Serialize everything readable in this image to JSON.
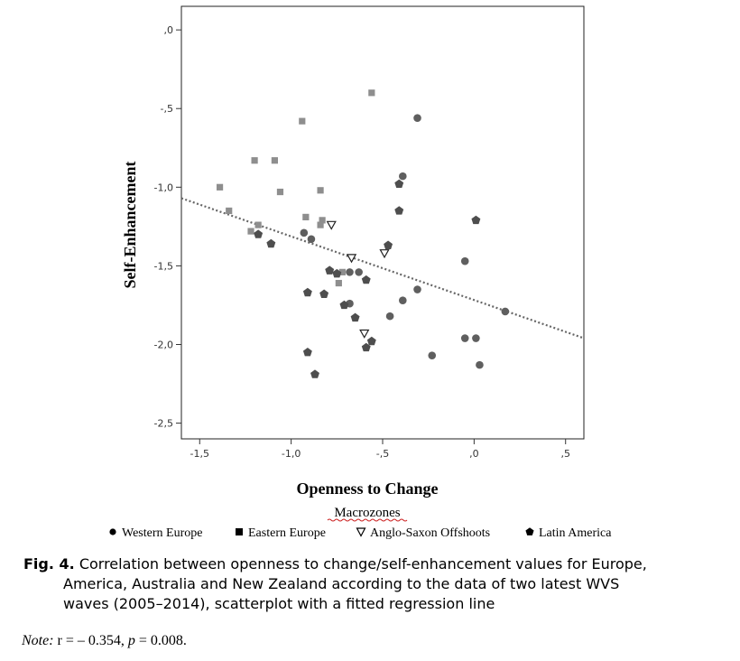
{
  "chart_data": {
    "type": "scatter",
    "xlabel": "Openness to Change",
    "ylabel": "Self-Enhancement",
    "xlim": [
      -1.6,
      0.6
    ],
    "ylim": [
      -2.6,
      0.15
    ],
    "xticks": [
      -1.5,
      -1.0,
      -0.5,
      0.0,
      0.5
    ],
    "yticks": [
      0.0,
      -0.5,
      -1.0,
      -1.5,
      -2.0,
      -2.5
    ],
    "xtick_labels": [
      "-1,5",
      "-1,0",
      "-,5",
      ",0",
      ",5"
    ],
    "ytick_labels": [
      ",0",
      "-,5",
      "-1,0",
      "-1,5",
      "-2,0",
      "-2,5"
    ],
    "legend_title": "Macrozones",
    "legend_placement": "bottom",
    "regression_line": {
      "x": [
        -1.6,
        0.6
      ],
      "y": [
        -1.07,
        -1.96
      ],
      "style": "dotted"
    },
    "series": [
      {
        "name": "Western Europe",
        "marker": "circle",
        "color": "#5f5f5f",
        "points": [
          [
            -0.31,
            -0.56
          ],
          [
            -0.39,
            -0.93
          ],
          [
            -0.93,
            -1.29
          ],
          [
            -0.89,
            -1.33
          ],
          [
            -0.68,
            -1.54
          ],
          [
            -0.63,
            -1.54
          ],
          [
            -0.39,
            -1.72
          ],
          [
            -0.31,
            -1.65
          ],
          [
            -0.46,
            -1.82
          ],
          [
            -0.68,
            -1.74
          ],
          [
            -0.05,
            -1.47
          ],
          [
            0.17,
            -1.79
          ],
          [
            -0.05,
            -1.96
          ],
          [
            0.01,
            -1.96
          ],
          [
            0.03,
            -2.13
          ],
          [
            -0.23,
            -2.07
          ]
        ]
      },
      {
        "name": "Eastern Europe",
        "marker": "square",
        "color": "#8e8e8e",
        "points": [
          [
            -0.56,
            -0.4
          ],
          [
            -0.94,
            -0.58
          ],
          [
            -1.2,
            -0.83
          ],
          [
            -1.09,
            -0.83
          ],
          [
            -1.39,
            -1.0
          ],
          [
            -1.06,
            -1.03
          ],
          [
            -0.84,
            -1.02
          ],
          [
            -1.34,
            -1.15
          ],
          [
            -0.92,
            -1.19
          ],
          [
            -0.83,
            -1.21
          ],
          [
            -1.18,
            -1.24
          ],
          [
            -0.84,
            -1.24
          ],
          [
            -1.22,
            -1.28
          ],
          [
            -0.72,
            -1.54
          ],
          [
            -0.74,
            -1.61
          ]
        ]
      },
      {
        "name": "Anglo-Saxon Offshoots",
        "marker": "triangle-down",
        "color": "#222222",
        "points": [
          [
            -0.78,
            -1.24
          ],
          [
            -0.67,
            -1.45
          ],
          [
            -0.49,
            -1.42
          ],
          [
            -0.6,
            -1.93
          ]
        ]
      },
      {
        "name": "Latin America",
        "marker": "pentagon",
        "color": "#4e4e4e",
        "points": [
          [
            -0.41,
            -0.98
          ],
          [
            -0.41,
            -1.15
          ],
          [
            0.01,
            -1.21
          ],
          [
            -1.18,
            -1.3
          ],
          [
            -1.11,
            -1.36
          ],
          [
            -0.47,
            -1.37
          ],
          [
            -0.79,
            -1.53
          ],
          [
            -0.75,
            -1.55
          ],
          [
            -0.59,
            -1.59
          ],
          [
            -0.91,
            -1.67
          ],
          [
            -0.82,
            -1.68
          ],
          [
            -0.71,
            -1.75
          ],
          [
            -0.65,
            -1.83
          ],
          [
            -0.56,
            -1.98
          ],
          [
            -0.59,
            -2.02
          ],
          [
            -0.91,
            -2.05
          ],
          [
            -0.87,
            -2.19
          ]
        ]
      }
    ]
  },
  "caption": {
    "label": "Fig. 4.",
    "line1": " Correlation between openness to change/self-enhancement values for Europe,",
    "line2": "America, Australia and New Zealand according to the data of two latest WVS",
    "line3": "waves (2005–2014), scatterplot with a fitted regression line"
  },
  "note": {
    "prefix": "Note:",
    "r_text": " r = – 0.354, ",
    "p_label": "p",
    "p_text": " = 0.008."
  }
}
